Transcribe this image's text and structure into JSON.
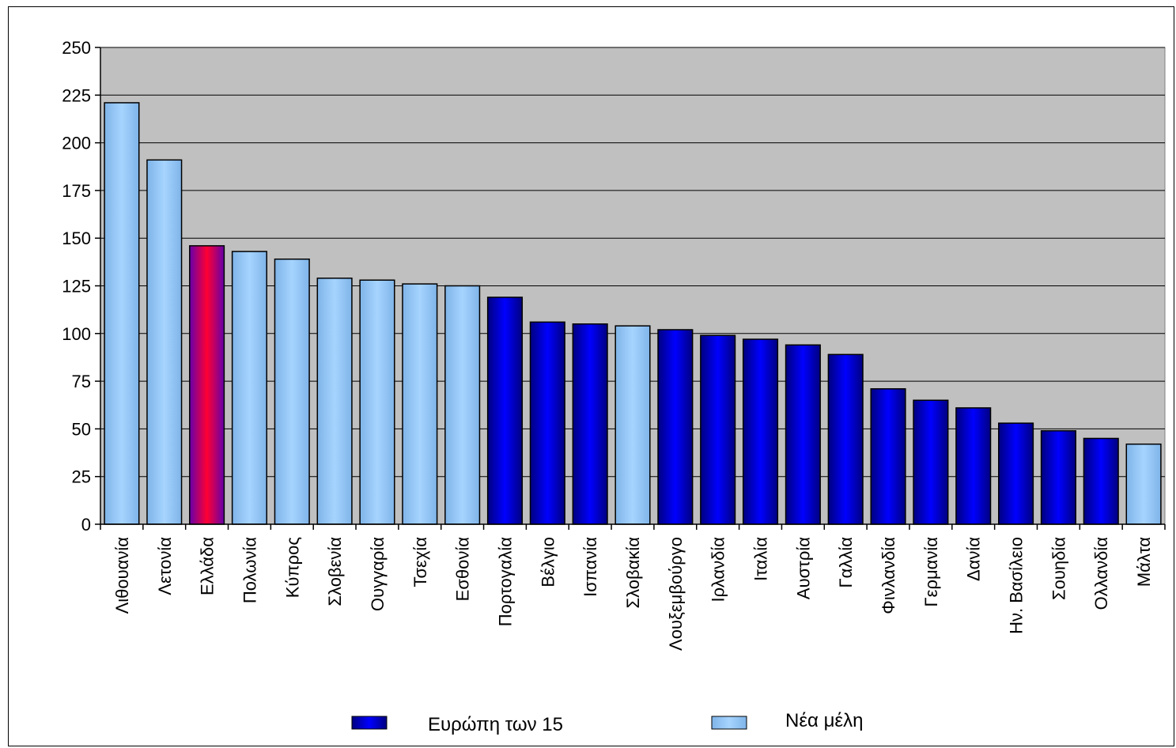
{
  "chart_data": {
    "type": "bar",
    "title": "",
    "xlabel": "",
    "ylabel": "",
    "ylim": [
      0,
      250
    ],
    "yticks": [
      0,
      25,
      50,
      75,
      100,
      125,
      150,
      175,
      200,
      225,
      250
    ],
    "grid": true,
    "legend_position": "bottom",
    "categories": [
      "Λιθουανία",
      "Λετονία",
      "Ελλάδα",
      "Πολωνία",
      "Κύπρος",
      "Σλοβενία",
      "Ουγγαρία",
      "Τσεχία",
      "Εσθονία",
      "Πορτογαλία",
      "Βέλγιο",
      "Ισπανία",
      "Σλοβακία",
      "Λουξεμβούργο",
      "Ιρλανδία",
      "Ιταλία",
      "Αυστρία",
      "Γαλλία",
      "Φινλανδία",
      "Γερμανία",
      "Δανία",
      "Ην. Βασίλειο",
      "Σουηδία",
      "Ολλανδία",
      "Μάλτα"
    ],
    "values": [
      221,
      191,
      146,
      143,
      139,
      129,
      128,
      126,
      125,
      119,
      106,
      105,
      104,
      102,
      99,
      97,
      94,
      89,
      71,
      65,
      61,
      53,
      49,
      45,
      42
    ],
    "groups": [
      "new",
      "new",
      "highlight",
      "new",
      "new",
      "new",
      "new",
      "new",
      "new",
      "eu15",
      "eu15",
      "eu15",
      "new",
      "eu15",
      "eu15",
      "eu15",
      "eu15",
      "eu15",
      "eu15",
      "eu15",
      "eu15",
      "eu15",
      "eu15",
      "eu15",
      "new"
    ],
    "legend": [
      {
        "name": "Ευρώπη των 15",
        "group": "eu15"
      },
      {
        "name": "Νέα μέλη",
        "group": "new"
      }
    ],
    "colors": {
      "eu15": "#0000ee",
      "new": "#99ccff",
      "highlight": "#ff0033",
      "plot_background": "#c0c0c0"
    }
  }
}
